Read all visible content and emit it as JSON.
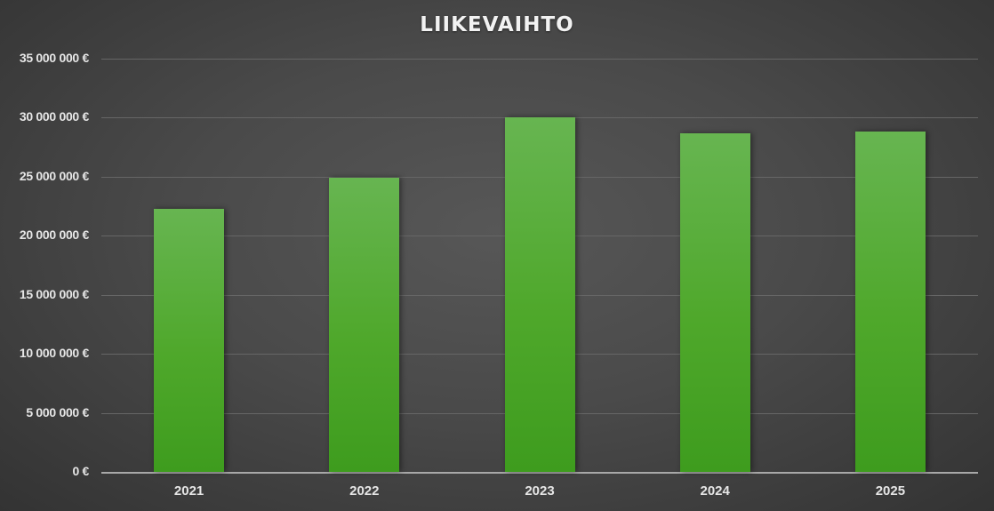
{
  "chart_data": {
    "type": "bar",
    "title": "LIIKEVAIHTO",
    "categories": [
      "2021",
      "2022",
      "2023",
      "2024",
      "2025"
    ],
    "values": [
      22300000,
      24900000,
      30000000,
      28700000,
      28800000
    ],
    "xlabel": "",
    "ylabel": "",
    "ylim": [
      0,
      35000000
    ],
    "yticks": [
      0,
      5000000,
      10000000,
      15000000,
      20000000,
      25000000,
      30000000,
      35000000
    ],
    "ytick_labels": [
      "0 €",
      "5 000 000 €",
      "10 000 000 €",
      "15 000 000 €",
      "20 000 000 €",
      "25 000 000 €",
      "30 000 000 €",
      "35 000 000 €"
    ],
    "grid": true,
    "legend": null,
    "colors": {
      "bar": "#4fa82b",
      "background": "#4a4a4a",
      "text": "#e6e6e6"
    }
  }
}
